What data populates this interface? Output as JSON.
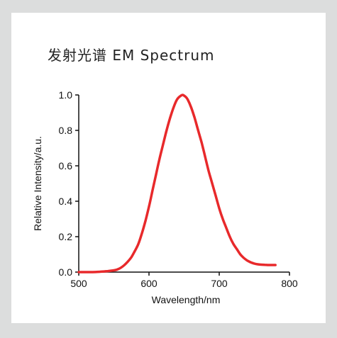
{
  "chart_data": {
    "type": "line",
    "title": "发射光谱 EM Spectrum",
    "xlabel": "Wavelength/nm",
    "ylabel": "Relative  Intensity/a.u.",
    "xlim": [
      500,
      800
    ],
    "ylim": [
      0,
      1.0
    ],
    "x_ticks": [
      "500",
      "600",
      "700",
      "800"
    ],
    "x_tick_values": [
      500,
      600,
      700,
      800
    ],
    "y_ticks": [
      "0.0",
      "0.2",
      "0.4",
      "0.6",
      "0.8",
      "1.0"
    ],
    "y_tick_values": [
      0,
      0.2,
      0.4,
      0.6,
      0.8,
      1.0
    ],
    "grid": false,
    "series": [
      {
        "color": "#e8292b",
        "x": [
          500,
          520,
          530,
          540,
          550,
          555,
          560,
          565,
          570,
          575,
          580,
          585,
          590,
          595,
          600,
          605,
          610,
          615,
          620,
          625,
          630,
          635,
          640,
          645,
          648,
          652,
          655,
          660,
          665,
          670,
          675,
          680,
          685,
          690,
          695,
          700,
          705,
          710,
          715,
          720,
          725,
          730,
          735,
          740,
          745,
          750,
          755,
          760,
          765,
          770,
          775,
          780
        ],
        "y": [
          0,
          0,
          0.002,
          0.005,
          0.01,
          0.015,
          0.025,
          0.04,
          0.06,
          0.085,
          0.12,
          0.16,
          0.22,
          0.29,
          0.37,
          0.46,
          0.55,
          0.64,
          0.72,
          0.8,
          0.87,
          0.93,
          0.975,
          0.995,
          1.0,
          0.99,
          0.975,
          0.93,
          0.87,
          0.8,
          0.73,
          0.65,
          0.57,
          0.5,
          0.43,
          0.36,
          0.3,
          0.25,
          0.2,
          0.16,
          0.13,
          0.1,
          0.08,
          0.065,
          0.055,
          0.048,
          0.044,
          0.042,
          0.041,
          0.04,
          0.04,
          0.04
        ]
      }
    ]
  }
}
